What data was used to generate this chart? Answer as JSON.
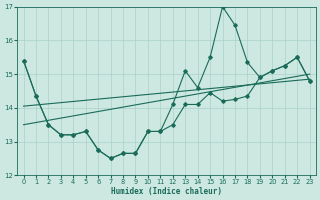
{
  "xlabel": "Humidex (Indice chaleur)",
  "bg_color": "#cce8e0",
  "grid_color": "#aad0c8",
  "line_color": "#1a6b5a",
  "xlim": [
    -0.5,
    23.5
  ],
  "ylim": [
    12,
    17
  ],
  "yticks": [
    12,
    13,
    14,
    15,
    16,
    17
  ],
  "xticks": [
    0,
    1,
    2,
    3,
    4,
    5,
    6,
    7,
    8,
    9,
    10,
    11,
    12,
    13,
    14,
    15,
    16,
    17,
    18,
    19,
    20,
    21,
    22,
    23
  ],
  "line1_x": [
    0,
    1,
    2,
    3,
    4,
    5,
    6,
    7,
    8,
    9,
    10,
    11,
    12,
    13,
    14,
    15,
    16,
    17,
    18,
    19,
    20,
    21,
    22,
    23
  ],
  "line1_y": [
    15.4,
    14.35,
    13.5,
    13.2,
    13.2,
    13.3,
    12.75,
    12.5,
    12.65,
    12.65,
    13.3,
    13.3,
    13.5,
    14.1,
    14.1,
    14.45,
    14.2,
    14.25,
    14.35,
    14.9,
    15.1,
    15.25,
    15.5,
    14.8
  ],
  "line2_x": [
    0,
    23
  ],
  "line2_y": [
    13.5,
    15.0
  ],
  "line3_x": [
    0,
    23
  ],
  "line3_y": [
    14.05,
    14.85
  ],
  "line4_x": [
    0,
    1,
    2,
    3,
    4,
    5,
    6,
    7,
    8,
    9,
    10,
    11,
    12,
    13,
    14,
    15,
    16,
    17,
    18,
    19,
    20,
    21,
    22,
    23
  ],
  "line4_y": [
    15.4,
    14.35,
    13.5,
    13.2,
    13.2,
    13.3,
    12.75,
    12.5,
    12.65,
    12.65,
    13.3,
    13.3,
    14.1,
    15.1,
    14.6,
    15.5,
    17.0,
    16.45,
    15.35,
    14.9,
    15.1,
    15.25,
    15.5,
    14.8
  ]
}
